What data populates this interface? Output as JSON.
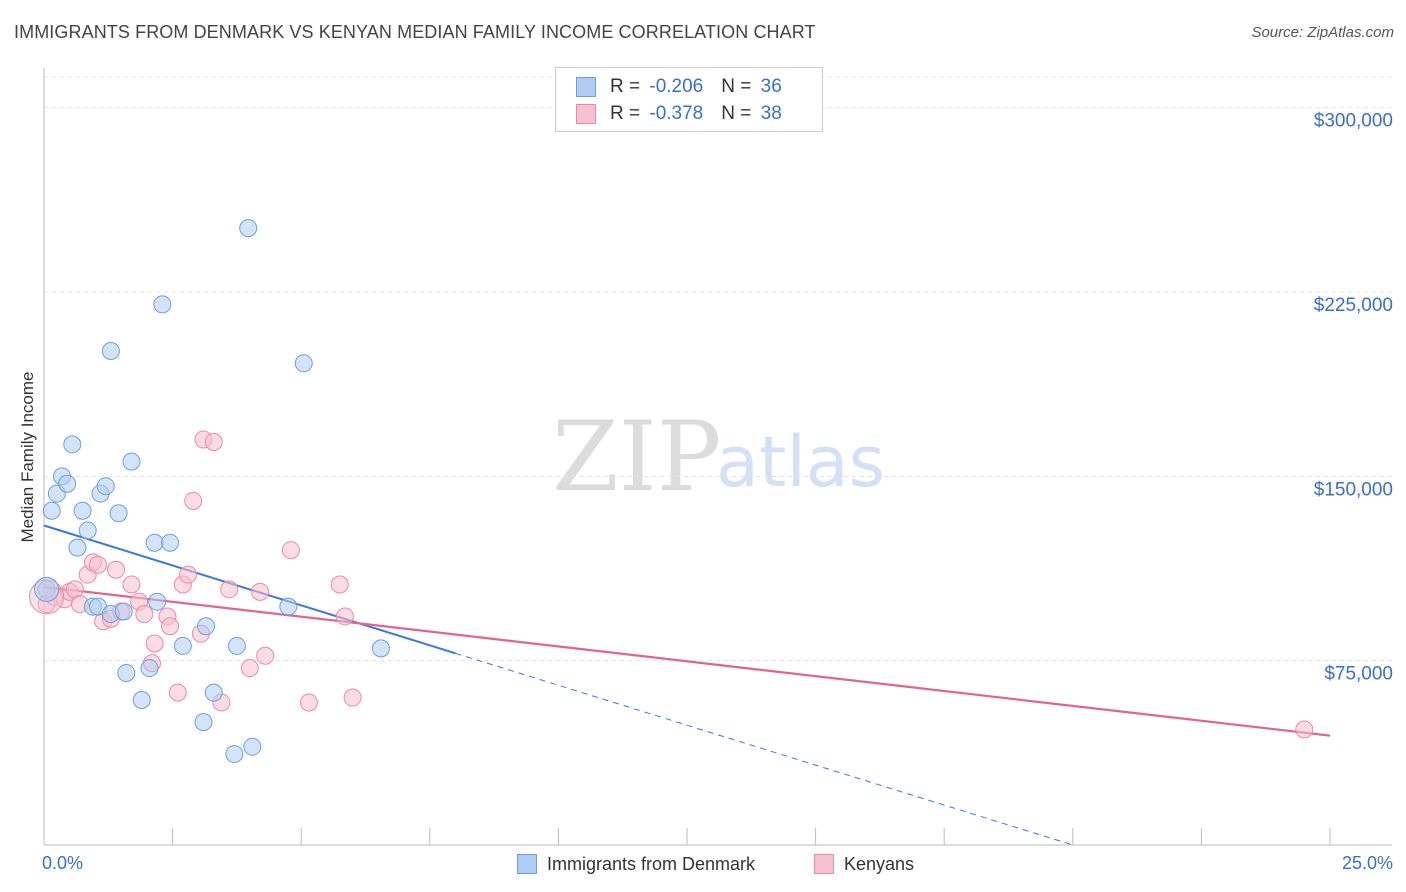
{
  "title": "IMMIGRANTS FROM DENMARK VS KENYAN MEDIAN FAMILY INCOME CORRELATION CHART",
  "source": "Source: ZipAtlas.com",
  "watermark": {
    "zip": "ZIP",
    "atlas": "atlas"
  },
  "legend": {
    "denmark": {
      "r_label": "R = ",
      "r_value": "-0.206",
      "n_label": "N = ",
      "n_value": "36"
    },
    "kenyan": {
      "r_label": "R = ",
      "r_value": "-0.378",
      "n_label": "N = ",
      "n_value": "38"
    }
  },
  "colors": {
    "denmark_fill": "#aecdf2",
    "denmark_stroke": "#6e9fd8",
    "denmark_line": "#3d78d8",
    "kenyan_fill": "#f7c0d0",
    "kenyan_stroke": "#e88aa8",
    "kenyan_line": "#e0648f",
    "tick_text": "#3b6fc4",
    "grid": "#e3e3e3"
  },
  "chart_data": {
    "type": "scatter",
    "title": "IMMIGRANTS FROM DENMARK VS KENYAN MEDIAN FAMILY INCOME CORRELATION CHART",
    "xlabel": "",
    "ylabel": "Median Family Income",
    "xlim": [
      0,
      25
    ],
    "ylim": [
      0,
      312500
    ],
    "x_ticks": [
      {
        "value": 0,
        "label": "0.0%"
      },
      {
        "value": 25,
        "label": "25.0%"
      }
    ],
    "y_ticks": [
      {
        "value": 75000,
        "label": "$75,000"
      },
      {
        "value": 150000,
        "label": "$150,000"
      },
      {
        "value": 225000,
        "label": "$225,000"
      },
      {
        "value": 300000,
        "label": "$300,000"
      }
    ],
    "series": [
      {
        "name": "Immigrants from Denmark",
        "points": [
          [
            0.05,
            104000
          ],
          [
            0.15,
            136000
          ],
          [
            0.25,
            143000
          ],
          [
            0.35,
            150000
          ],
          [
            0.45,
            147000
          ],
          [
            0.55,
            163000
          ],
          [
            0.65,
            121000
          ],
          [
            0.75,
            136000
          ],
          [
            0.85,
            128000
          ],
          [
            0.95,
            97000
          ],
          [
            1.05,
            97000
          ],
          [
            1.1,
            143000
          ],
          [
            1.2,
            146000
          ],
          [
            1.3,
            94000
          ],
          [
            1.3,
            201000
          ],
          [
            1.45,
            135000
          ],
          [
            1.55,
            95000
          ],
          [
            1.6,
            70000
          ],
          [
            1.7,
            156000
          ],
          [
            1.9,
            59000
          ],
          [
            2.05,
            72000
          ],
          [
            2.15,
            123000
          ],
          [
            2.2,
            99000
          ],
          [
            2.3,
            220000
          ],
          [
            2.45,
            123000
          ],
          [
            2.7,
            81000
          ],
          [
            3.1,
            50000
          ],
          [
            3.15,
            89000
          ],
          [
            3.3,
            62000
          ],
          [
            3.7,
            37000
          ],
          [
            3.75,
            81000
          ],
          [
            3.97,
            251000
          ],
          [
            4.05,
            40000
          ],
          [
            4.75,
            97000
          ],
          [
            5.05,
            196000
          ],
          [
            6.55,
            80000
          ]
        ],
        "trend": {
          "x0": 0,
          "y0": 130000,
          "x1": 8.0,
          "y1": 78000,
          "dashed_to_x": 20.0
        }
      },
      {
        "name": "Kenyans",
        "points": [
          [
            0.05,
            98000
          ],
          [
            0.2,
            101000
          ],
          [
            0.4,
            100000
          ],
          [
            0.5,
            103000
          ],
          [
            0.6,
            104000
          ],
          [
            0.7,
            98000
          ],
          [
            0.85,
            110000
          ],
          [
            0.95,
            115000
          ],
          [
            1.05,
            114000
          ],
          [
            1.15,
            91000
          ],
          [
            1.3,
            92000
          ],
          [
            1.4,
            112000
          ],
          [
            1.5,
            95000
          ],
          [
            1.7,
            106000
          ],
          [
            1.85,
            99000
          ],
          [
            1.95,
            94000
          ],
          [
            2.1,
            74000
          ],
          [
            2.15,
            82000
          ],
          [
            2.4,
            93000
          ],
          [
            2.45,
            89000
          ],
          [
            2.6,
            62000
          ],
          [
            2.7,
            106000
          ],
          [
            2.8,
            110000
          ],
          [
            2.9,
            140000
          ],
          [
            3.05,
            86000
          ],
          [
            3.1,
            165000
          ],
          [
            3.3,
            164000
          ],
          [
            3.45,
            58000
          ],
          [
            3.6,
            104000
          ],
          [
            4.0,
            72000
          ],
          [
            4.2,
            103000
          ],
          [
            4.3,
            77000
          ],
          [
            4.8,
            120000
          ],
          [
            5.15,
            58000
          ],
          [
            5.75,
            106000
          ],
          [
            5.85,
            93000
          ],
          [
            6.0,
            60000
          ],
          [
            24.5,
            47000
          ]
        ],
        "trend": {
          "x0": 0,
          "y0": 105000,
          "x1": 25,
          "y1": 44500
        }
      }
    ]
  },
  "bottom_legend": {
    "denmark": "Immigrants from Denmark",
    "kenyan": "Kenyans"
  }
}
